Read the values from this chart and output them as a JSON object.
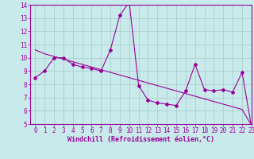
{
  "x": [
    0,
    1,
    2,
    3,
    4,
    5,
    6,
    7,
    8,
    9,
    10,
    11,
    12,
    13,
    14,
    15,
    16,
    17,
    18,
    19,
    20,
    21,
    22,
    23
  ],
  "y_curve": [
    8.5,
    9.0,
    10.0,
    10.0,
    9.5,
    9.3,
    9.2,
    9.0,
    10.6,
    13.2,
    14.2,
    7.9,
    6.8,
    6.6,
    6.5,
    6.4,
    7.5,
    9.5,
    7.6,
    7.5,
    7.6,
    7.4,
    8.9,
    4.8
  ],
  "y_trend": [
    10.6,
    10.3,
    10.1,
    9.9,
    9.7,
    9.5,
    9.3,
    9.1,
    8.9,
    8.7,
    8.5,
    8.3,
    8.1,
    7.9,
    7.7,
    7.5,
    7.3,
    7.1,
    6.9,
    6.7,
    6.5,
    6.3,
    6.1,
    4.9
  ],
  "color": "#990099",
  "bg_color": "#c8eaea",
  "grid_color": "#a8c8c8",
  "ylim": [
    5,
    14
  ],
  "xlim": [
    -0.5,
    23
  ],
  "yticks": [
    5,
    6,
    7,
    8,
    9,
    10,
    11,
    12,
    13,
    14
  ],
  "xticks": [
    0,
    1,
    2,
    3,
    4,
    5,
    6,
    7,
    8,
    9,
    10,
    11,
    12,
    13,
    14,
    15,
    16,
    17,
    18,
    19,
    20,
    21,
    22,
    23
  ],
  "xlabel": "Windchill (Refroidissement éolien,°C)",
  "marker": "D",
  "linewidth": 0.8,
  "markersize": 2.0
}
